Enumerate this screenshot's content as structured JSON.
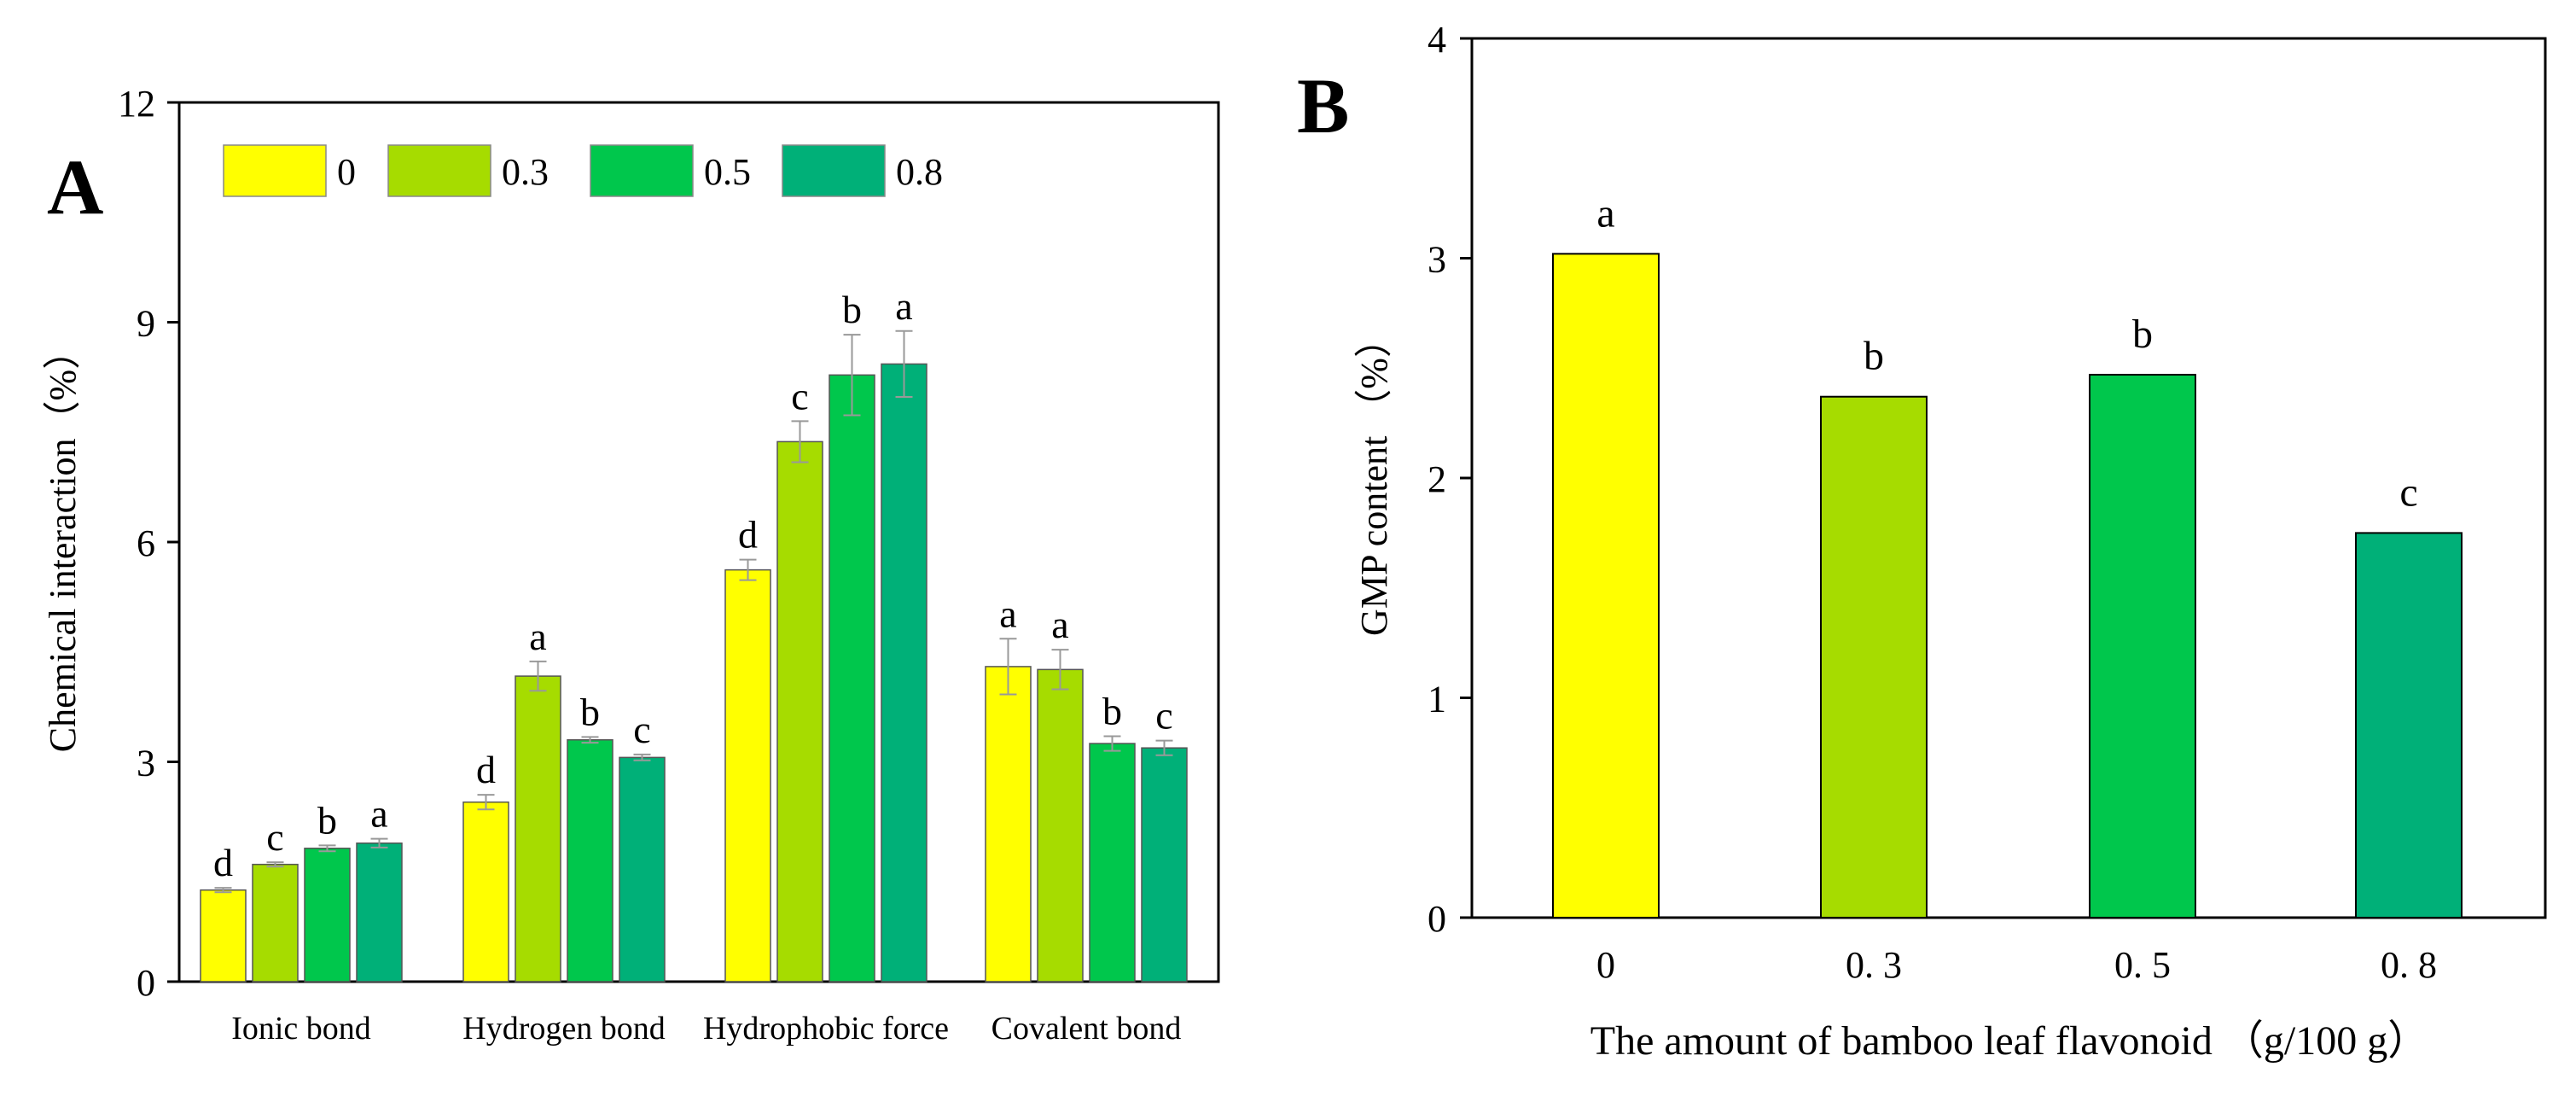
{
  "figure": {
    "panel_a_label": "A",
    "panel_b_label": "B"
  },
  "chart_data": [
    {
      "type": "bar",
      "panel": "A",
      "categories": [
        "Ionic bond",
        "Hydrogen bond",
        "Hydrophobic force",
        "Covalent bond"
      ],
      "series": [
        {
          "name": "0",
          "color": "#FFFF00",
          "values": [
            1.25,
            2.45,
            5.62,
            4.3
          ],
          "errors": [
            0.03,
            0.1,
            0.14,
            0.38
          ],
          "letters": [
            "d",
            "d",
            "d",
            "a"
          ]
        },
        {
          "name": "0.3",
          "color": "#A6DC00",
          "values": [
            1.6,
            4.17,
            7.37,
            4.26
          ],
          "errors": [
            0.03,
            0.2,
            0.28,
            0.27
          ],
          "letters": [
            "c",
            "a",
            "c",
            "a"
          ]
        },
        {
          "name": "0.5",
          "color": "#00C74C",
          "values": [
            1.82,
            3.3,
            8.28,
            3.25
          ],
          "errors": [
            0.04,
            0.04,
            0.55,
            0.1
          ],
          "letters": [
            "b",
            "b",
            "b",
            "b"
          ]
        },
        {
          "name": "0.8",
          "color": "#00B078",
          "values": [
            1.89,
            3.06,
            8.43,
            3.19
          ],
          "errors": [
            0.06,
            0.04,
            0.45,
            0.1
          ],
          "letters": [
            "a",
            "c",
            "a",
            "c"
          ]
        }
      ],
      "ylabel": "Chemical interaction（%）",
      "xlabel": "",
      "ylim": [
        0,
        12
      ],
      "yticks": [
        "0",
        "3",
        "6",
        "9",
        "12"
      ],
      "legend": "top-left",
      "grid": false
    },
    {
      "type": "bar",
      "panel": "B",
      "categories": [
        "0",
        "0. 3",
        "0. 5",
        "0. 8"
      ],
      "values": [
        3.02,
        2.37,
        2.47,
        1.75
      ],
      "colors": [
        "#FFFF00",
        "#A6DC00",
        "#00C74C",
        "#00B078"
      ],
      "letters": [
        "a",
        "b",
        "b",
        "c"
      ],
      "xlabel": "The amount of bamboo leaf flavonoid （g/100 g）",
      "ylabel": "GMP content （%）",
      "ylim": [
        0,
        4
      ],
      "yticks": [
        "0",
        "1",
        "2",
        "3",
        "4"
      ],
      "grid": false
    }
  ]
}
